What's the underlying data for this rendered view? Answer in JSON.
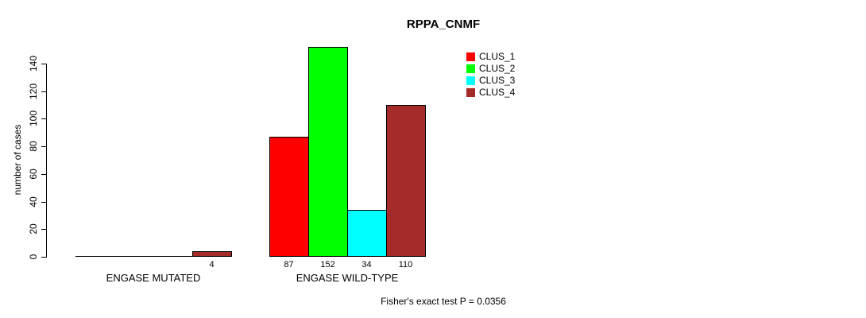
{
  "chart_data": {
    "type": "bar",
    "title": "RPPA_CNMF",
    "xlabel": "",
    "ylabel": "number of cases",
    "ylim": [
      0,
      140
    ],
    "yticks": [
      0,
      20,
      40,
      60,
      80,
      100,
      120,
      140
    ],
    "grid": false,
    "legend_position": "top-right",
    "categories": [
      "ENGASE MUTATED",
      "ENGASE WILD-TYPE"
    ],
    "series": [
      {
        "name": "CLUS_1",
        "color": "#FF0000",
        "values": [
          0,
          87
        ]
      },
      {
        "name": "CLUS_2",
        "color": "#00FF00",
        "values": [
          0,
          152
        ]
      },
      {
        "name": "CLUS_3",
        "color": "#00FFFF",
        "values": [
          0,
          34
        ]
      },
      {
        "name": "CLUS_4",
        "color": "#A52A2A",
        "values": [
          4,
          110
        ]
      }
    ],
    "groups": [
      {
        "label": "ENGASE MUTATED",
        "values": [
          0,
          0,
          0,
          4
        ]
      },
      {
        "label": "ENGASE WILD-TYPE",
        "values": [
          87,
          152,
          34,
          110
        ]
      }
    ],
    "bar_value_labels_shown": [
      "4",
      "87",
      "152",
      "34",
      "110"
    ],
    "annotation": "Fisher's exact test P = 0.0356"
  }
}
